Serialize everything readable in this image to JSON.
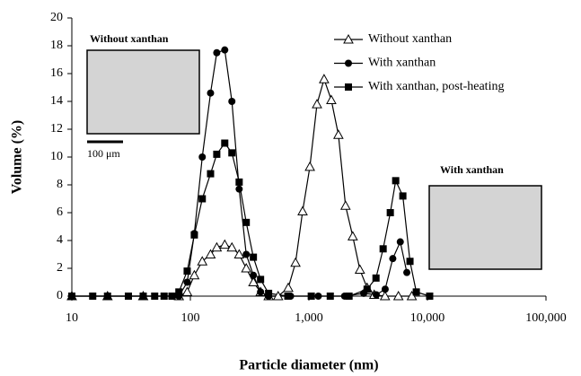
{
  "chart_data": {
    "type": "line",
    "x_label": "Particle diameter (nm)",
    "y_label": "Volume (%)",
    "log_x": true,
    "xlim": [
      10,
      100000
    ],
    "xticks": [
      10,
      100,
      {
        "value": 1000,
        "label": "1,000"
      },
      {
        "value": 10000,
        "label": "10,000"
      },
      {
        "value": 100000,
        "label": "100,000"
      }
    ],
    "ylim": [
      0,
      20
    ],
    "yticks": [
      0,
      2,
      4,
      6,
      8,
      10,
      12,
      14,
      16,
      18,
      20
    ],
    "grid": false,
    "legend": "top-right",
    "annotations": [
      "Without xanthan",
      "100 μm",
      "With xanthan"
    ],
    "series": [
      {
        "name": "Without xanthan",
        "color": "#000000",
        "marker": "triangle-open",
        "x": [
          10,
          20,
          40,
          80,
          94,
          108,
          126,
          148,
          167,
          195,
          224,
          258,
          296,
          340,
          391,
          457,
          550,
          670,
          771,
          885,
          1019,
          1170,
          1343,
          1545,
          1774,
          2037,
          2344,
          2692,
          3097,
          3556,
          4385,
          5690,
          7380
        ],
        "values": [
          0,
          0,
          0,
          0,
          0.3,
          1.5,
          2.5,
          3,
          3.5,
          3.7,
          3.5,
          3,
          2,
          1,
          0.3,
          0,
          0,
          0.6,
          2.4,
          6.1,
          9.3,
          13.8,
          15.6,
          14.1,
          11.6,
          6.5,
          4.3,
          1.9,
          0.6,
          0.1,
          0,
          0,
          0
        ]
      },
      {
        "name": "With xanthan",
        "color": "#000000",
        "marker": "circle",
        "x": [
          10,
          20,
          40,
          80,
          94,
          108,
          126,
          148,
          167,
          195,
          224,
          258,
          296,
          340,
          391,
          457,
          700,
          1200,
          2000,
          2900,
          3700,
          4400,
          5100,
          5900,
          6700
        ],
        "values": [
          0,
          0,
          0,
          0,
          1,
          4.5,
          10,
          14.6,
          17.5,
          17.7,
          14,
          7.7,
          3,
          1.5,
          0.3,
          0,
          0,
          0,
          0,
          0.2,
          0.1,
          0.5,
          2.7,
          3.9,
          1.7
        ]
      },
      {
        "name": "With xanthan, post-heating",
        "color": "#000000",
        "marker": "square",
        "x": [
          10,
          15,
          20,
          30,
          40,
          50,
          60,
          70,
          80,
          94,
          108,
          126,
          148,
          167,
          195,
          224,
          258,
          296,
          340,
          391,
          457,
          664,
          1047,
          1514,
          2180,
          3097,
          3681,
          4229,
          4860,
          5397,
          6201,
          7122,
          8054,
          10440
        ],
        "values": [
          0,
          0,
          0,
          0,
          0,
          0,
          0,
          0,
          0.3,
          1.8,
          4.4,
          7,
          8.8,
          10.2,
          11,
          10.3,
          8.2,
          5.3,
          2.8,
          1.2,
          0.2,
          0,
          0,
          0,
          0,
          0.5,
          1.3,
          3.4,
          6,
          8.3,
          7.2,
          2.5,
          0.3,
          0
        ]
      }
    ]
  }
}
